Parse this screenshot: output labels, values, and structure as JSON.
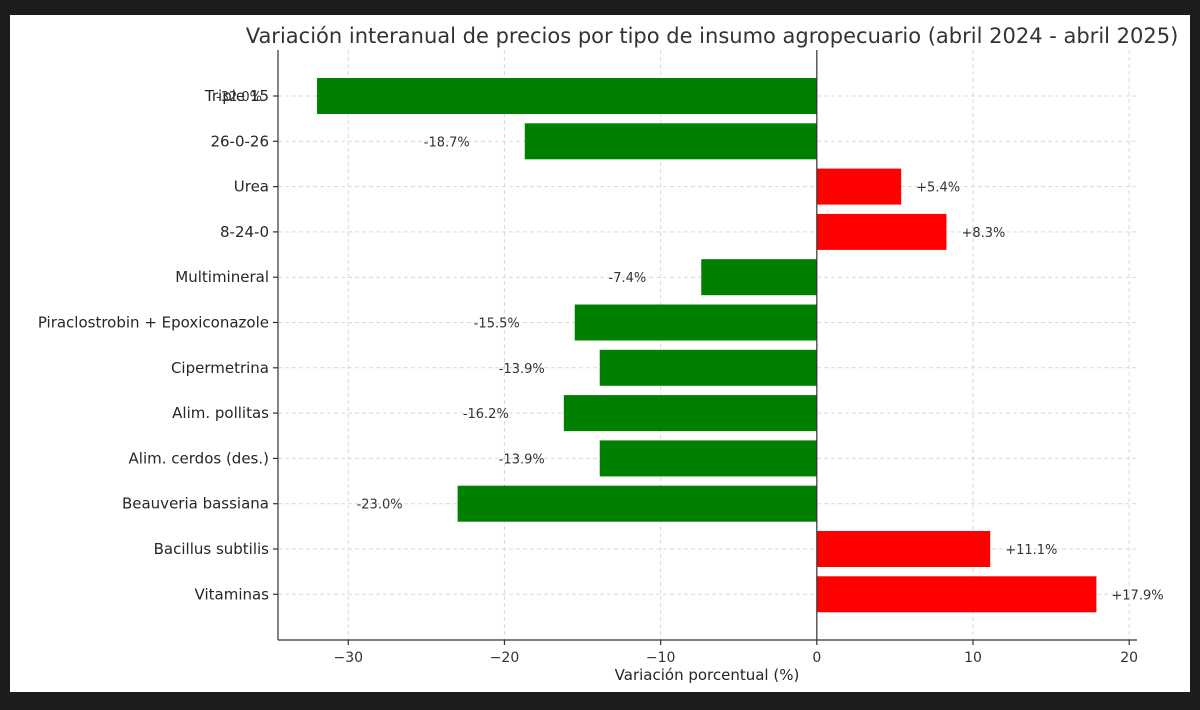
{
  "chart_data": {
    "type": "bar",
    "orientation": "horizontal",
    "title": "Variación interanual de precios por tipo de insumo agropecuario (abril 2024 - abril 2025)",
    "xlabel": "Variación porcentual (%)",
    "ylabel": "",
    "xlim": [
      -34.5,
      20.5
    ],
    "xticks": [
      -30,
      -20,
      -10,
      0,
      10,
      20
    ],
    "xtick_labels": [
      "−30",
      "−20",
      "−10",
      "0",
      "10",
      "20"
    ],
    "grid": true,
    "colors": {
      "negative": "#008000",
      "positive": "#ff0000"
    },
    "categories": [
      "Triple 15",
      "26-0-26",
      "Urea",
      "8-24-0",
      "Multimineral",
      "Piraclostrobin + Epoxiconazole",
      "Cipermetrina",
      "Alim. pollitas",
      "Alim. cerdos (des.)",
      "Beauveria bassiana",
      "Bacillus subtilis",
      "Vitaminas"
    ],
    "values": [
      -32.0,
      -18.7,
      5.4,
      8.3,
      -7.4,
      -15.5,
      -13.9,
      -16.2,
      -13.9,
      -23.0,
      11.1,
      17.9
    ],
    "data_labels": [
      "-32.0%",
      "-18.7%",
      "+5.4%",
      "+8.3%",
      "-7.4%",
      "-15.5%",
      "-13.9%",
      "-16.2%",
      "-13.9%",
      "-23.0%",
      "+11.1%",
      "+17.9%"
    ]
  }
}
